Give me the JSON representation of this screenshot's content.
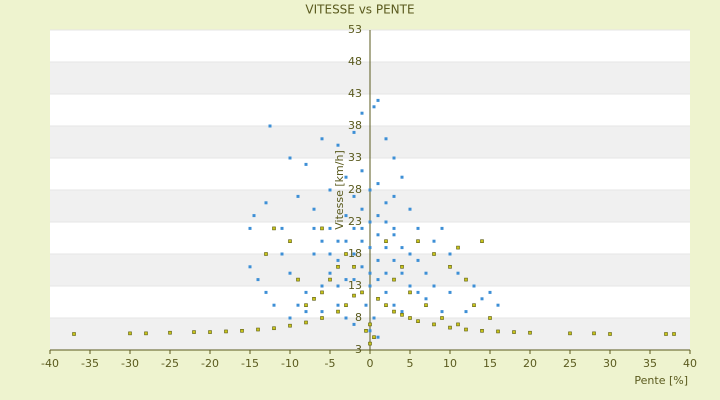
{
  "chart_data": {
    "type": "scatter",
    "title": "VITESSE vs PENTE",
    "x_label": "Pente [%]",
    "y_label": "Vitesse [km/h]",
    "xlim": [
      -40,
      40
    ],
    "xticks": [
      -40,
      -35,
      -30,
      -25,
      -20,
      -15,
      -10,
      -5,
      0,
      5,
      10,
      15,
      20,
      25,
      30,
      35,
      40
    ],
    "ylim": [
      3,
      53
    ],
    "yticks": [
      3,
      8,
      13,
      18,
      23,
      28,
      33,
      38,
      43,
      48,
      53
    ],
    "grid": "bands",
    "series": [
      {
        "color": "#3d8fd6",
        "x": [
          -12.5,
          -10,
          -8,
          -6,
          -4,
          -2,
          -1,
          0.5,
          1,
          2,
          3,
          -14.5,
          -13,
          -15,
          -11,
          -9,
          -7,
          -5,
          -3,
          -1,
          1,
          3,
          5,
          4,
          6,
          8,
          10,
          9,
          11,
          13,
          14,
          16,
          12,
          -14,
          -13,
          -12,
          -10,
          -9,
          -8,
          -7,
          -6,
          -5,
          -4,
          -3,
          -2,
          -1,
          0,
          1,
          2,
          3,
          4,
          5,
          6,
          7,
          -4,
          -3,
          -2,
          -1,
          0,
          1,
          2,
          3,
          4,
          5,
          -6,
          -5,
          -2,
          -1,
          0,
          1,
          2,
          3,
          -3,
          -4,
          -2,
          0,
          2,
          -1,
          0,
          1,
          -0.5,
          0.5,
          -8,
          -10,
          6,
          7,
          8,
          9,
          10,
          12,
          15,
          -15,
          -11,
          -6,
          4,
          5,
          -7,
          -5,
          -3,
          -1,
          1,
          3,
          2,
          0,
          -2,
          -4
        ],
        "values": [
          38,
          33,
          32,
          36,
          35,
          37,
          40,
          41,
          42,
          36,
          33,
          24,
          26,
          22,
          22,
          27,
          25,
          28,
          30,
          31,
          29,
          27,
          25,
          30,
          22,
          20,
          18,
          22,
          15,
          13,
          11,
          10,
          9,
          14,
          12,
          10,
          15,
          10,
          12,
          18,
          20,
          22,
          17,
          14,
          22,
          25,
          23,
          21,
          19,
          17,
          15,
          13,
          12,
          11,
          10,
          8,
          7,
          12,
          15,
          14,
          12,
          10,
          9,
          8,
          13,
          15,
          18,
          20,
          19,
          17,
          23,
          21,
          24,
          20,
          27,
          28,
          26,
          16,
          6,
          5,
          10,
          8,
          9,
          8,
          17,
          15,
          13,
          9,
          12,
          14,
          12,
          16,
          18,
          9,
          19,
          18,
          22,
          18,
          20,
          22,
          24,
          22,
          15,
          13,
          14,
          13
        ]
      },
      {
        "color": "#c8c41a",
        "x": [
          -37,
          -30,
          -28,
          -25,
          -22,
          -20,
          -18,
          -16,
          -14,
          -12,
          -10,
          -8,
          -6,
          -4,
          -3,
          -2,
          -1,
          1,
          2,
          3,
          4,
          5,
          6,
          8,
          10,
          12,
          14,
          16,
          18,
          20,
          25,
          28,
          30,
          37,
          38,
          -8,
          -6,
          -5,
          -4,
          -3,
          -10,
          -12,
          6,
          8,
          10,
          11,
          12,
          13,
          5,
          7,
          9,
          0,
          0.5,
          -0.5,
          -6,
          -13,
          14,
          15,
          11,
          -9,
          -7,
          3,
          4,
          2,
          -2,
          0
        ],
        "values": [
          5.5,
          5.6,
          5.6,
          5.7,
          5.8,
          5.8,
          5.9,
          6,
          6.2,
          6.4,
          6.8,
          7.3,
          8,
          9,
          10,
          11.5,
          12,
          11,
          10,
          9,
          8.5,
          8,
          7.5,
          7,
          6.5,
          6.2,
          6,
          5.9,
          5.8,
          5.7,
          5.6,
          5.6,
          5.5,
          5.5,
          5.5,
          10,
          12,
          14,
          16,
          18,
          20,
          22,
          20,
          18,
          16,
          19,
          14,
          10,
          12,
          10,
          8,
          4,
          5,
          6,
          22,
          18,
          20,
          8,
          7,
          14,
          11,
          14,
          16,
          20,
          16,
          7
        ]
      }
    ]
  }
}
